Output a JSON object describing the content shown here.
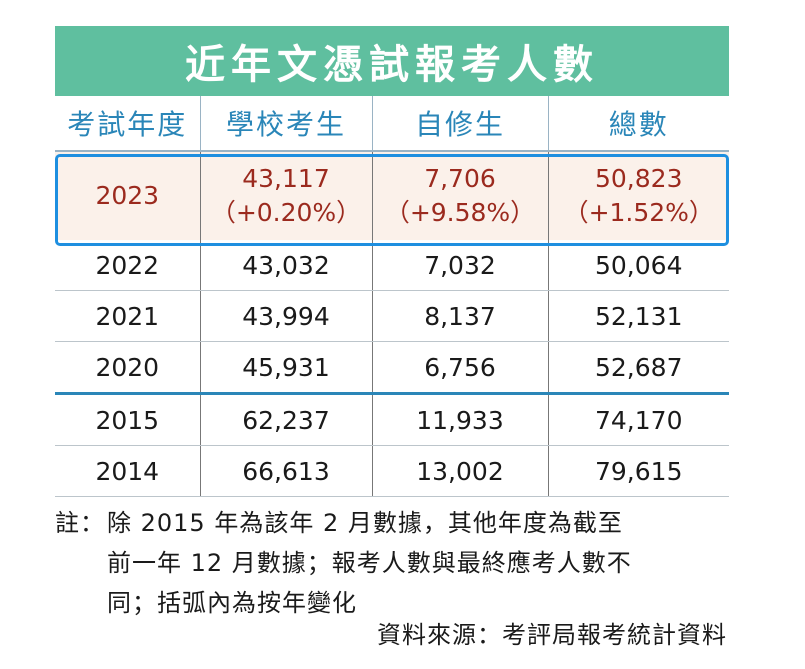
{
  "title": "近年文憑試報考人數",
  "columns": [
    "考試年度",
    "學校考生",
    "自修生",
    "總數"
  ],
  "highlight_row": {
    "year": "2023",
    "school": "43,117",
    "school_change": "（+0.20%）",
    "private": "7,706",
    "private_change": "（+9.58%）",
    "total": "50,823",
    "total_change": "（+1.52%）"
  },
  "rows": [
    {
      "year": "2022",
      "school": "43,032",
      "private": "7,032",
      "total": "50,064"
    },
    {
      "year": "2021",
      "school": "43,994",
      "private": "8,137",
      "total": "52,131"
    },
    {
      "year": "2020",
      "school": "45,931",
      "private": "6,756",
      "total": "52,687"
    },
    {
      "year": "2015",
      "school": "62,237",
      "private": "11,933",
      "total": "74,170"
    },
    {
      "year": "2014",
      "school": "66,613",
      "private": "13,002",
      "total": "79,615"
    }
  ],
  "note": {
    "prefix": "註：",
    "line1": "除 2015 年為該年 2 月數據，其他年度為截至",
    "line2": "前一年 12 月數據；報考人數與最終應考人數不",
    "line3": "同；括弧內為按年變化"
  },
  "source": "資料來源：考評局報考統計資料",
  "colors": {
    "title_bg": "#5fbf9f",
    "header_text": "#2a86b8",
    "highlight_text": "#9b2a1e",
    "highlight_border": "#1e8fe0"
  }
}
